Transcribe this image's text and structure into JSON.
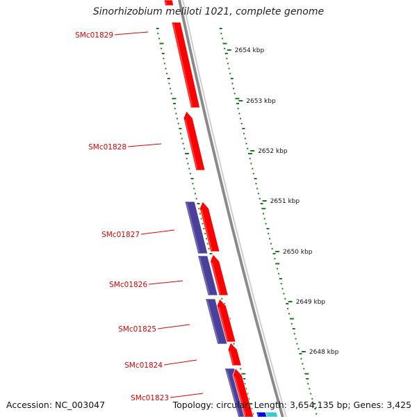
{
  "title": "Sinorhizobium meliloti 1021, complete genome",
  "footer": {
    "accession": "Accession: NC_003047",
    "summary": "Topology: circular; Length: 3,654,135 bp; Genes: 3,425"
  },
  "colors": {
    "forward_cds": "#ff0000",
    "blast_hit": "#4a3f9a",
    "backbone": "#8a8a8a",
    "gc_skew": "#1a7a1a",
    "label": "#e00000",
    "cyan_feature": "#33cccc",
    "blue_feature": "#0000dd"
  },
  "gene_labels": [
    {
      "name": "SMc01829"
    },
    {
      "name": "SMc01828"
    },
    {
      "name": "SMc01827"
    },
    {
      "name": "SMc01826"
    },
    {
      "name": "SMc01825"
    },
    {
      "name": "SMc01824"
    },
    {
      "name": "SMc01823"
    }
  ],
  "ticks": [
    {
      "label": "2654 kbp"
    },
    {
      "label": "2653 kbp"
    },
    {
      "label": "2652 kbp"
    },
    {
      "label": "2651 kbp"
    },
    {
      "label": "2650 kbp"
    },
    {
      "label": "2649 kbp"
    },
    {
      "label": "2648 kbp"
    }
  ]
}
